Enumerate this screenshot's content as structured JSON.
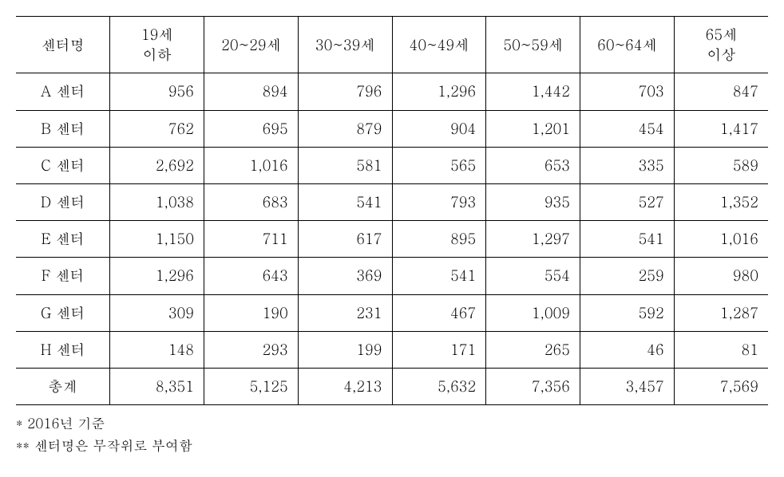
{
  "table": {
    "columns": [
      "센터명",
      "19세\n이하",
      "20~29세",
      "30~39세",
      "40~49세",
      "50~59세",
      "60~64세",
      "65세\n이상"
    ],
    "column_widths": [
      "12.5%",
      "12.5%",
      "12.5%",
      "12.5%",
      "12.5%",
      "12.5%",
      "12.5%",
      "12.5%"
    ],
    "header_align": "center",
    "cell_align_first": "center",
    "cell_align_rest": "right",
    "border_color": "#000000",
    "font_size_pt": 14,
    "font_family": "Batang, serif",
    "rows": [
      {
        "label": "A 센터",
        "values": [
          "956",
          "894",
          "796",
          "1,296",
          "1,442",
          "703",
          "847"
        ]
      },
      {
        "label": "B 센터",
        "values": [
          "762",
          "695",
          "879",
          "904",
          "1,201",
          "454",
          "1,417"
        ]
      },
      {
        "label": "C 센터",
        "values": [
          "2,692",
          "1,016",
          "581",
          "565",
          "653",
          "335",
          "589"
        ]
      },
      {
        "label": "D 센터",
        "values": [
          "1,038",
          "683",
          "541",
          "793",
          "935",
          "527",
          "1,352"
        ]
      },
      {
        "label": "E 센터",
        "values": [
          "1,150",
          "711",
          "617",
          "895",
          "1,297",
          "541",
          "1,016"
        ]
      },
      {
        "label": "F 센터",
        "values": [
          "1,296",
          "643",
          "369",
          "541",
          "554",
          "259",
          "980"
        ]
      },
      {
        "label": "G 센터",
        "values": [
          "309",
          "190",
          "231",
          "467",
          "1,009",
          "592",
          "1,287"
        ]
      },
      {
        "label": "H 센터",
        "values": [
          "148",
          "293",
          "199",
          "171",
          "265",
          "46",
          "81"
        ]
      },
      {
        "label": "총계",
        "values": [
          "8,351",
          "5,125",
          "4,213",
          "5,632",
          "7,356",
          "3,457",
          "7,569"
        ]
      }
    ]
  },
  "footnotes": [
    "* 2016년 기준",
    "** 센터명은 무작위로 부여함"
  ]
}
